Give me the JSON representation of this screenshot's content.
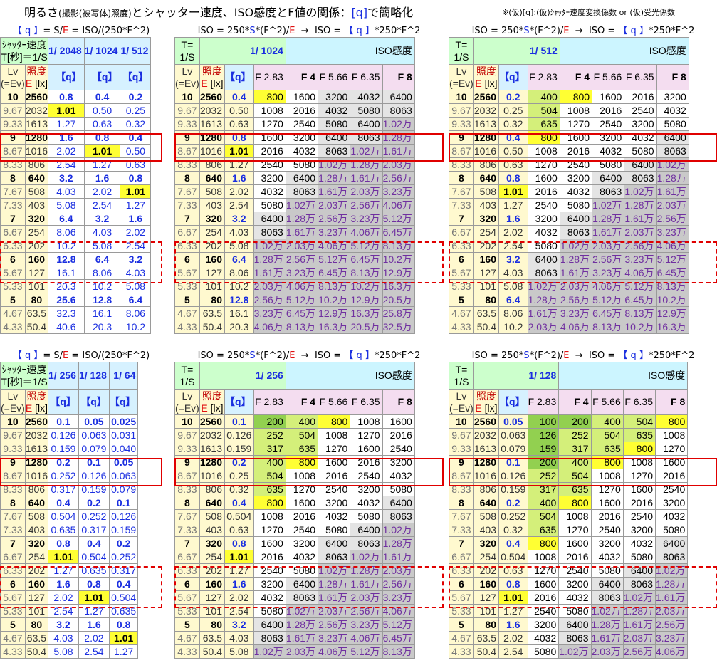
{
  "header": {
    "title_a": "明るさ",
    "title_b": "(撮影(被写体)照度)",
    "title_c": "とシャッター速度、ISO感度とF値の関係：",
    "title_q": "[q]",
    "title_d": "で簡略化",
    "note": "※(仮)[q]:(仮)ｼｬｯﾀｰ速度変換係数 or (仮)受光係数"
  },
  "labels": {
    "formula_q": "【 q 】= S/E = ISO/(250*F^2)",
    "formula_iso": "ISO = 250*S*(F^2)/E → ISO =【 q 】*250*F^2",
    "ss_label": "ｼｬｯﾀｰ速度 T[秒]＝1/S",
    "ss_short": "T= 1/S",
    "iso_head": "ISO感度",
    "lv_head": "Lv (=Ev)",
    "lux_head": "照度 E [lx]",
    "q_head": "【q】",
    "f_labels": [
      "F 2.83",
      "F 4",
      "F 5.66",
      "F 6.35",
      "F 8"
    ],
    "colors": {
      "red_box": "#e00000",
      "yellow": "#ffff33",
      "green": "#92d050",
      "gray": "#c9c9c9"
    }
  },
  "lv": [
    "10",
    "9.67",
    "9.33",
    "9",
    "8.67",
    "8.33",
    "8",
    "7.67",
    "7.33",
    "7",
    "6.67",
    "6.33",
    "6",
    "5.67",
    "5.33",
    "5",
    "4.67",
    "4.33"
  ],
  "lux": [
    "2560",
    "2032",
    "1613",
    "1280",
    "1016",
    "806",
    "640",
    "508",
    "403",
    "320",
    "254",
    "202",
    "160",
    "127",
    "101",
    "80",
    "63.5",
    "50.4"
  ],
  "panels": {
    "tl": {
      "q_cols": [
        "1/ 2048",
        "1/ 1024",
        "1/ 512"
      ],
      "rows": [
        [
          "0.8",
          "0.4",
          "0.2"
        ],
        [
          "1.01",
          "0.50",
          "0.25"
        ],
        [
          "1.27",
          "0.63",
          "0.32"
        ],
        [
          "1.6",
          "0.8",
          "0.4"
        ],
        [
          "2.02",
          "1.01",
          "0.50"
        ],
        [
          "2.54",
          "1.27",
          "0.63"
        ],
        [
          "3.2",
          "1.6",
          "0.8"
        ],
        [
          "4.03",
          "2.02",
          "1.01"
        ],
        [
          "5.08",
          "2.54",
          "1.27"
        ],
        [
          "6.4",
          "3.2",
          "1.6"
        ],
        [
          "8.06",
          "4.03",
          "2.02"
        ],
        [
          "10.2",
          "5.08",
          "2.54"
        ],
        [
          "12.8",
          "6.4",
          "3.2"
        ],
        [
          "16.1",
          "8.06",
          "4.03"
        ],
        [
          "20.3",
          "10.2",
          "5.08"
        ],
        [
          "25.6",
          "12.8",
          "6.4"
        ],
        [
          "32.3",
          "16.1",
          "8.06"
        ],
        [
          "40.6",
          "20.3",
          "10.2"
        ]
      ]
    },
    "tr1": {
      "shutter": "1/ 1024",
      "q": [
        "0.4",
        "0.50",
        "0.63",
        "0.8",
        "1.01",
        "1.27",
        "1.6",
        "2.02",
        "2.54",
        "3.2",
        "4.03",
        "5.08",
        "6.4",
        "8.06",
        "10.2",
        "12.8",
        "16.1",
        "20.3"
      ],
      "iso": [
        [
          "800",
          "1600",
          "3200",
          "4032",
          "6400"
        ],
        [
          "1008",
          "2016",
          "4032",
          "5080",
          "8063"
        ],
        [
          "1270",
          "2540",
          "5080",
          "6400",
          "1.02万"
        ],
        [
          "1600",
          "3200",
          "6400",
          "8063",
          "1.28万"
        ],
        [
          "2016",
          "4032",
          "8063",
          "1.02万",
          "1.61万"
        ],
        [
          "2540",
          "5080",
          "1.02万",
          "1.28万",
          "2.03万"
        ],
        [
          "3200",
          "6400",
          "1.28万",
          "1.61万",
          "2.56万"
        ],
        [
          "4032",
          "8063",
          "1.61万",
          "2.03万",
          "3.23万"
        ],
        [
          "5080",
          "1.02万",
          "2.03万",
          "2.56万",
          "4.06万"
        ],
        [
          "6400",
          "1.28万",
          "2.56万",
          "3.23万",
          "5.12万"
        ],
        [
          "8063",
          "1.61万",
          "3.23万",
          "4.06万",
          "6.45万"
        ],
        [
          "1.02万",
          "2.03万",
          "4.06万",
          "5.12万",
          "8.13万"
        ],
        [
          "1.28万",
          "2.56万",
          "5.12万",
          "6.45万",
          "10.2万"
        ],
        [
          "1.61万",
          "3.23万",
          "6.45万",
          "8.13万",
          "12.9万"
        ],
        [
          "2.03万",
          "4.06万",
          "8.13万",
          "10.2万",
          "16.3万"
        ],
        [
          "2.56万",
          "5.12万",
          "10.2万",
          "12.9万",
          "20.5万"
        ],
        [
          "3.23万",
          "6.45万",
          "12.9万",
          "16.3万",
          "25.8万"
        ],
        [
          "4.06万",
          "8.13万",
          "16.3万",
          "20.5万",
          "32.5万"
        ]
      ]
    },
    "tr2": {
      "shutter": "1/ 512",
      "q": [
        "0.2",
        "0.25",
        "0.32",
        "0.4",
        "0.50",
        "0.63",
        "0.8",
        "1.01",
        "1.27",
        "1.6",
        "2.02",
        "2.54",
        "3.2",
        "4.03",
        "5.08",
        "6.4",
        "8.06",
        "10.2"
      ],
      "iso": [
        [
          "400",
          "800",
          "1600",
          "2016",
          "3200"
        ],
        [
          "504",
          "1008",
          "2016",
          "2540",
          "4032"
        ],
        [
          "635",
          "1270",
          "2540",
          "3200",
          "5080"
        ],
        [
          "800",
          "1600",
          "3200",
          "4032",
          "6400"
        ],
        [
          "1008",
          "2016",
          "4032",
          "5080",
          "8063"
        ],
        [
          "1270",
          "2540",
          "5080",
          "6400",
          "1.02万"
        ],
        [
          "1600",
          "3200",
          "6400",
          "8063",
          "1.28万"
        ],
        [
          "2016",
          "4032",
          "8063",
          "1.02万",
          "1.61万"
        ],
        [
          "2540",
          "5080",
          "1.02万",
          "1.28万",
          "2.03万"
        ],
        [
          "3200",
          "6400",
          "1.28万",
          "1.61万",
          "2.56万"
        ],
        [
          "4032",
          "8063",
          "1.61万",
          "2.03万",
          "3.23万"
        ],
        [
          "5080",
          "1.02万",
          "2.03万",
          "2.56万",
          "4.06万"
        ],
        [
          "6400",
          "1.28万",
          "2.56万",
          "3.23万",
          "5.12万"
        ],
        [
          "8063",
          "1.61万",
          "3.23万",
          "4.06万",
          "6.45万"
        ],
        [
          "1.02万",
          "2.03万",
          "4.06万",
          "5.12万",
          "8.13万"
        ],
        [
          "1.28万",
          "2.56万",
          "5.12万",
          "6.45万",
          "10.2万"
        ],
        [
          "1.61万",
          "3.23万",
          "6.45万",
          "8.13万",
          "12.9万"
        ],
        [
          "2.03万",
          "4.06万",
          "8.13万",
          "10.2万",
          "16.3万"
        ]
      ]
    },
    "bl": {
      "q_cols": [
        "1/ 256",
        "1/ 128",
        "1/ 64"
      ],
      "rows": [
        [
          "0.1",
          "0.05",
          "0.025"
        ],
        [
          "0.126",
          "0.063",
          "0.031"
        ],
        [
          "0.159",
          "0.079",
          "0.040"
        ],
        [
          "0.2",
          "0.1",
          "0.05"
        ],
        [
          "0.252",
          "0.126",
          "0.063"
        ],
        [
          "0.317",
          "0.159",
          "0.079"
        ],
        [
          "0.4",
          "0.2",
          "0.1"
        ],
        [
          "0.504",
          "0.252",
          "0.126"
        ],
        [
          "0.635",
          "0.317",
          "0.159"
        ],
        [
          "0.8",
          "0.4",
          "0.2"
        ],
        [
          "1.01",
          "0.504",
          "0.252"
        ],
        [
          "1.27",
          "0.635",
          "0.317"
        ],
        [
          "1.6",
          "0.8",
          "0.4"
        ],
        [
          "2.02",
          "1.01",
          "0.504"
        ],
        [
          "2.54",
          "1.27",
          "0.635"
        ],
        [
          "3.2",
          "1.6",
          "0.8"
        ],
        [
          "4.03",
          "2.02",
          "1.01"
        ],
        [
          "5.08",
          "2.54",
          "1.27"
        ]
      ]
    },
    "br1": {
      "shutter": "1/ 256",
      "q": [
        "0.1",
        "0.126",
        "0.159",
        "0.2",
        "0.25",
        "0.32",
        "0.4",
        "0.504",
        "0.63",
        "0.8",
        "1.01",
        "1.27",
        "1.6",
        "2.02",
        "2.54",
        "3.2",
        "4.03",
        "5.08"
      ],
      "iso": [
        [
          "200",
          "400",
          "800",
          "1008",
          "1600"
        ],
        [
          "252",
          "504",
          "1008",
          "1270",
          "2016"
        ],
        [
          "317",
          "635",
          "1270",
          "1600",
          "2540"
        ],
        [
          "400",
          "800",
          "1600",
          "2016",
          "3200"
        ],
        [
          "504",
          "1008",
          "2016",
          "2540",
          "4032"
        ],
        [
          "635",
          "1270",
          "2540",
          "3200",
          "5080"
        ],
        [
          "800",
          "1600",
          "3200",
          "4032",
          "6400"
        ],
        [
          "1008",
          "2016",
          "4032",
          "5080",
          "8063"
        ],
        [
          "1270",
          "2540",
          "5080",
          "6400",
          "1.02万"
        ],
        [
          "1600",
          "3200",
          "6400",
          "8063",
          "1.28万"
        ],
        [
          "2016",
          "4032",
          "8063",
          "1.02万",
          "1.61万"
        ],
        [
          "2540",
          "5080",
          "1.02万",
          "1.28万",
          "2.03万"
        ],
        [
          "3200",
          "6400",
          "1.28万",
          "1.61万",
          "2.56万"
        ],
        [
          "4032",
          "8063",
          "1.61万",
          "2.03万",
          "3.23万"
        ],
        [
          "5080",
          "1.02万",
          "2.03万",
          "2.56万",
          "4.06万"
        ],
        [
          "6400",
          "1.28万",
          "2.56万",
          "3.23万",
          "5.12万"
        ],
        [
          "8063",
          "1.61万",
          "3.23万",
          "4.06万",
          "6.45万"
        ],
        [
          "1.02万",
          "2.03万",
          "4.06万",
          "5.12万",
          "8.13万"
        ]
      ]
    },
    "br2": {
      "shutter": "1/ 128",
      "q": [
        "0.05",
        "0.063",
        "0.079",
        "0.1",
        "0.126",
        "0.159",
        "0.2",
        "0.252",
        "0.32",
        "0.4",
        "0.504",
        "0.63",
        "0.8",
        "1.01",
        "1.27",
        "1.6",
        "2.02",
        "2.54"
      ],
      "iso": [
        [
          "100",
          "200",
          "400",
          "504",
          "800"
        ],
        [
          "126",
          "252",
          "504",
          "635",
          "1008"
        ],
        [
          "159",
          "317",
          "635",
          "800",
          "1270"
        ],
        [
          "200",
          "400",
          "800",
          "1008",
          "1600"
        ],
        [
          "252",
          "504",
          "1008",
          "1270",
          "2016"
        ],
        [
          "317",
          "635",
          "1270",
          "1600",
          "2540"
        ],
        [
          "400",
          "800",
          "1600",
          "2016",
          "3200"
        ],
        [
          "504",
          "1008",
          "2016",
          "2540",
          "4032"
        ],
        [
          "635",
          "1270",
          "2540",
          "3200",
          "5080"
        ],
        [
          "800",
          "1600",
          "3200",
          "4032",
          "6400"
        ],
        [
          "1008",
          "2016",
          "4032",
          "5080",
          "8063"
        ],
        [
          "1270",
          "2540",
          "5080",
          "6400",
          "1.02万"
        ],
        [
          "1600",
          "3200",
          "6400",
          "8063",
          "1.28万"
        ],
        [
          "2016",
          "4032",
          "8063",
          "1.02万",
          "1.61万"
        ],
        [
          "2540",
          "5080",
          "1.02万",
          "1.28万",
          "2.03万"
        ],
        [
          "3200",
          "6400",
          "1.28万",
          "1.61万",
          "2.56万"
        ],
        [
          "4032",
          "8063",
          "1.61万",
          "2.03万",
          "3.23万"
        ],
        [
          "5080",
          "1.02万",
          "2.03万",
          "2.56万",
          "4.06万"
        ]
      ]
    }
  }
}
